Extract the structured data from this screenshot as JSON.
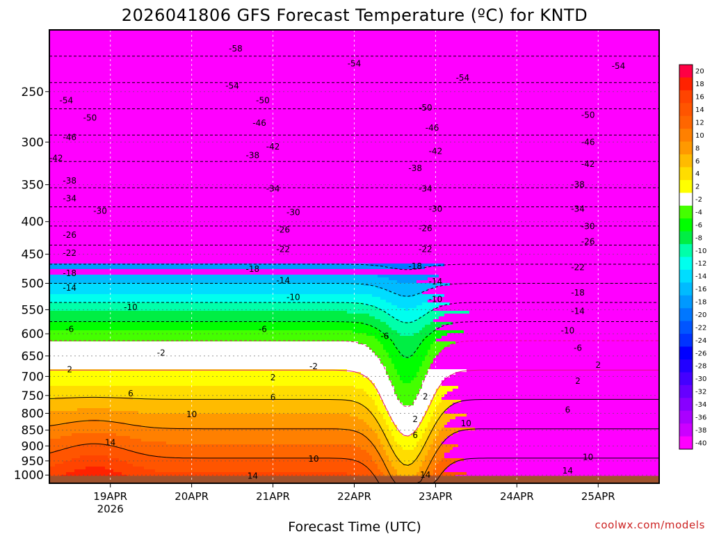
{
  "chart_data": {
    "type": "heatmap",
    "title": "2026041806 GFS Forecast Temperature (ºC) for KNTD",
    "xlabel": "Forecast Time (UTC)",
    "ylabel": "",
    "credit": "coolwx.com/models",
    "y_axis": {
      "scale": "log",
      "inverted": true,
      "range": [
        1030,
        200
      ],
      "ticks": [
        250,
        300,
        350,
        400,
        450,
        500,
        550,
        600,
        650,
        700,
        750,
        800,
        850,
        900,
        950,
        1000
      ]
    },
    "x_axis": {
      "range": [
        "2026-04-18T06",
        "2026-04-25T18"
      ],
      "ticks": [
        {
          "time": "2026-04-19T00",
          "label": "19APR",
          "sub": "2026"
        },
        {
          "time": "2026-04-20T00",
          "label": "20APR",
          "sub": ""
        },
        {
          "time": "2026-04-21T00",
          "label": "21APR",
          "sub": ""
        },
        {
          "time": "2026-04-22T00",
          "label": "22APR",
          "sub": ""
        },
        {
          "time": "2026-04-23T00",
          "label": "23APR",
          "sub": ""
        },
        {
          "time": "2026-04-24T00",
          "label": "24APR",
          "sub": ""
        },
        {
          "time": "2026-04-25T00",
          "label": "25APR",
          "sub": ""
        }
      ]
    },
    "grid": true,
    "surface_color": "#a0522d",
    "colorbar": {
      "position": "right",
      "labels": [
        "20",
        "18",
        "16",
        "14",
        "12",
        "10",
        "8",
        "6",
        "4",
        "2",
        "-2",
        "-4",
        "-6",
        "-8",
        "-10",
        "-12",
        "-14",
        "-16",
        "-18",
        "-20",
        "-22",
        "-24",
        "-26",
        "-28",
        "-30",
        "-32",
        "-34",
        "-36",
        "-38",
        "-40"
      ],
      "colors": [
        "#ff0044",
        "#ff2200",
        "#ff4400",
        "#ff5500",
        "#ff6600",
        "#ff8000",
        "#ff9900",
        "#ffbb00",
        "#ffdd00",
        "#ffff00",
        "#ffffff",
        "#44ff00",
        "#00ff00",
        "#00ee44",
        "#00ffaa",
        "#00ffee",
        "#00ddff",
        "#00bbff",
        "#0099ff",
        "#0077ff",
        "#0055ff",
        "#0033ff",
        "#0000ff",
        "#2200ff",
        "#4400ff",
        "#6600ff",
        "#8800ff",
        "#aa00ff",
        "#cc00ff",
        "#ff00ff"
      ]
    },
    "isotherm_labels": [
      {
        "time": "2026-04-18T11",
        "p": 258,
        "text": "-54"
      },
      {
        "time": "2026-04-20T12",
        "p": 245,
        "text": "-54"
      },
      {
        "time": "2026-04-20T13",
        "p": 214,
        "text": "-58"
      },
      {
        "time": "2026-04-22T00",
        "p": 226,
        "text": "-54"
      },
      {
        "time": "2026-04-23T08",
        "p": 238,
        "text": "-54"
      },
      {
        "time": "2026-04-25T06",
        "p": 228,
        "text": "-54"
      },
      {
        "time": "2026-04-18T18",
        "p": 275,
        "text": "-50"
      },
      {
        "time": "2026-04-20T21",
        "p": 258,
        "text": "-50"
      },
      {
        "time": "2026-04-22T21",
        "p": 265,
        "text": "-50"
      },
      {
        "time": "2026-04-24T21",
        "p": 272,
        "text": "-50"
      },
      {
        "time": "2026-04-18T12",
        "p": 295,
        "text": "-46"
      },
      {
        "time": "2026-04-20T20",
        "p": 280,
        "text": "-46"
      },
      {
        "time": "2026-04-22T23",
        "p": 285,
        "text": "-46"
      },
      {
        "time": "2026-04-24T21",
        "p": 300,
        "text": "-46"
      },
      {
        "time": "2026-04-18T08",
        "p": 318,
        "text": "-42"
      },
      {
        "time": "2026-04-21T00",
        "p": 305,
        "text": "-42"
      },
      {
        "time": "2026-04-23T00",
        "p": 310,
        "text": "-42"
      },
      {
        "time": "2026-04-24T21",
        "p": 325,
        "text": "-42"
      },
      {
        "time": "2026-04-18T12",
        "p": 345,
        "text": "-38"
      },
      {
        "time": "2026-04-20T18",
        "p": 315,
        "text": "-38"
      },
      {
        "time": "2026-04-22T18",
        "p": 330,
        "text": "-38"
      },
      {
        "time": "2026-04-24T18",
        "p": 350,
        "text": "-38"
      },
      {
        "time": "2026-04-18T12",
        "p": 368,
        "text": "-34"
      },
      {
        "time": "2026-04-21T00",
        "p": 355,
        "text": "-34"
      },
      {
        "time": "2026-04-22T21",
        "p": 355,
        "text": "-34"
      },
      {
        "time": "2026-04-24T18",
        "p": 382,
        "text": "-34"
      },
      {
        "time": "2026-04-18T21",
        "p": 385,
        "text": "-30"
      },
      {
        "time": "2026-04-21T06",
        "p": 387,
        "text": "-30"
      },
      {
        "time": "2026-04-23T00",
        "p": 382,
        "text": "-30"
      },
      {
        "time": "2026-04-24T21",
        "p": 407,
        "text": "-30"
      },
      {
        "time": "2026-04-18T12",
        "p": 420,
        "text": "-26"
      },
      {
        "time": "2026-04-21T03",
        "p": 412,
        "text": "-26"
      },
      {
        "time": "2026-04-22T21",
        "p": 410,
        "text": "-26"
      },
      {
        "time": "2026-04-24T21",
        "p": 430,
        "text": "-26"
      },
      {
        "time": "2026-04-18T12",
        "p": 448,
        "text": "-22"
      },
      {
        "time": "2026-04-21T03",
        "p": 442,
        "text": "-22"
      },
      {
        "time": "2026-04-22T21",
        "p": 442,
        "text": "-22"
      },
      {
        "time": "2026-04-24T18",
        "p": 472,
        "text": "-22"
      },
      {
        "time": "2026-04-18T12",
        "p": 482,
        "text": "-18"
      },
      {
        "time": "2026-04-20T18",
        "p": 475,
        "text": "-18"
      },
      {
        "time": "2026-04-22T18",
        "p": 470,
        "text": "-18"
      },
      {
        "time": "2026-04-24T18",
        "p": 517,
        "text": "-18"
      },
      {
        "time": "2026-04-18T12",
        "p": 508,
        "text": "-14"
      },
      {
        "time": "2026-04-21T03",
        "p": 495,
        "text": "-14"
      },
      {
        "time": "2026-04-23T00",
        "p": 497,
        "text": "-14"
      },
      {
        "time": "2026-04-24T18",
        "p": 553,
        "text": "-14"
      },
      {
        "time": "2026-04-19T06",
        "p": 545,
        "text": "-10"
      },
      {
        "time": "2026-04-21T06",
        "p": 526,
        "text": "-10"
      },
      {
        "time": "2026-04-23T00",
        "p": 530,
        "text": "-10"
      },
      {
        "time": "2026-04-24T15",
        "p": 593,
        "text": "-10"
      },
      {
        "time": "2026-04-18T12",
        "p": 590,
        "text": "-6"
      },
      {
        "time": "2026-04-20T21",
        "p": 590,
        "text": "-6"
      },
      {
        "time": "2026-04-22T09",
        "p": 605,
        "text": "-6"
      },
      {
        "time": "2026-04-24T18",
        "p": 632,
        "text": "-6"
      },
      {
        "time": "2026-04-19T15",
        "p": 643,
        "text": "-2"
      },
      {
        "time": "2026-04-21T12",
        "p": 675,
        "text": "-2"
      },
      {
        "time": "2026-04-25T00",
        "p": 672,
        "text": "2"
      },
      {
        "time": "2026-04-18T12",
        "p": 683,
        "text": "2"
      },
      {
        "time": "2026-04-21T00",
        "p": 703,
        "text": "2"
      },
      {
        "time": "2026-04-22T21",
        "p": 753,
        "text": "2"
      },
      {
        "time": "2026-04-22T18",
        "p": 817,
        "text": "2"
      },
      {
        "time": "2026-04-24T18",
        "p": 712,
        "text": "2"
      },
      {
        "time": "2026-04-19T06",
        "p": 745,
        "text": "6"
      },
      {
        "time": "2026-04-21T00",
        "p": 755,
        "text": "6"
      },
      {
        "time": "2026-04-22T18",
        "p": 866,
        "text": "6"
      },
      {
        "time": "2026-04-24T15",
        "p": 790,
        "text": "6"
      },
      {
        "time": "2026-04-20T00",
        "p": 803,
        "text": "10"
      },
      {
        "time": "2026-04-21T12",
        "p": 943,
        "text": "10"
      },
      {
        "time": "2026-04-23T09",
        "p": 830,
        "text": "10"
      },
      {
        "time": "2026-04-24T21",
        "p": 937,
        "text": "10"
      },
      {
        "time": "2026-04-19T00",
        "p": 889,
        "text": "14"
      },
      {
        "time": "2026-04-20T18",
        "p": 1003,
        "text": "14"
      },
      {
        "time": "2026-04-22T21",
        "p": 1000,
        "text": "14"
      },
      {
        "time": "2026-04-24T15",
        "p": 985,
        "text": "14"
      }
    ]
  }
}
